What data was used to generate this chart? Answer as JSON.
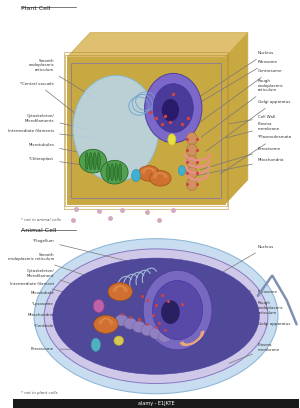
{
  "bg_color": "#ffffff",
  "plant_cell_title": "Plant Cell",
  "animal_cell_title": "Animal Cell",
  "plant_note": "* not in animal cells",
  "animal_note": "* not in plant cells",
  "alamy_text": "alamy - E1JKTE",
  "plant_cell_colors": {
    "outer_wall": "#e8c97a",
    "outer_wall_edge": "#c9a94a",
    "vacuole": "#b8d8f0",
    "nucleus_outer": "#7b68c8",
    "nucleus_inner": "#4a3a9a",
    "nucleolus": "#2a1a6a",
    "rough_er": "#d09060",
    "golgi": "#e89090",
    "chloroplast": "#50a050",
    "mitochondria": "#d07030",
    "peroxisome": "#40b0d0",
    "ribosome": "#cc4444",
    "centrosome": "#e8e040"
  },
  "animal_cell_colors": {
    "halo": "#c8ddf0",
    "halo_edge": "#90b8d8",
    "outer_mem": "#d0c8e8",
    "outer_mem_edge": "#8878c0",
    "interior": "#504898",
    "nucleus_outer": "#7868c0",
    "nucleus_inner": "#5848a8",
    "nucleolus": "#282060",
    "rough_er": "#9080c0",
    "rough_er_edge": "#7060a8",
    "golgi": "#e8a878",
    "mitochondria": "#d07030",
    "mito_edge": "#a05010",
    "centriole": "#d8c850",
    "lysosome": "#c060a8",
    "peroxisome": "#50b0c0",
    "ribosome": "#cc4444",
    "flagellum": "#8090b0",
    "smooth_er": "#a0b8d8"
  }
}
